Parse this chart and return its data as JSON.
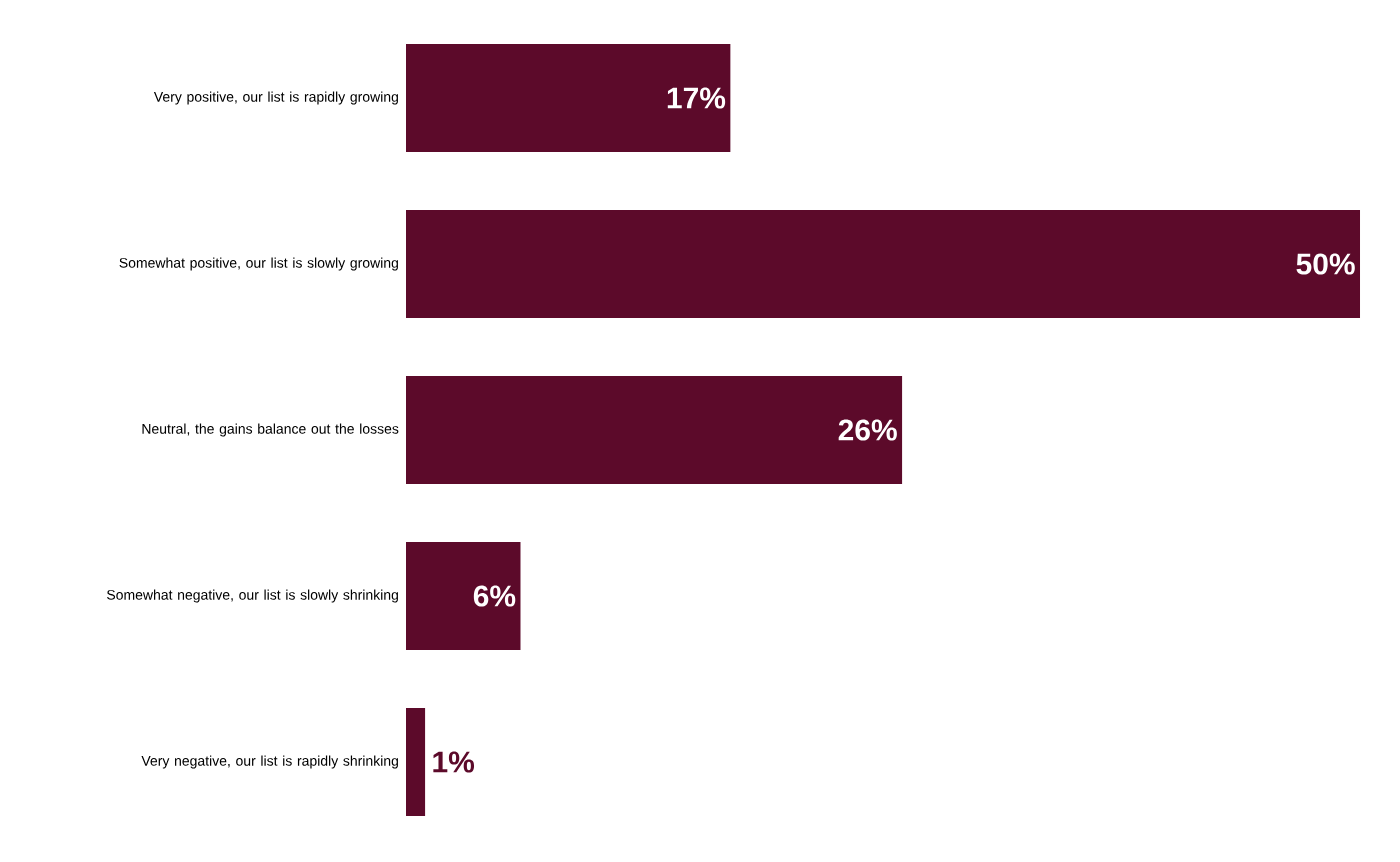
{
  "chart_data": {
    "type": "bar",
    "orientation": "horizontal",
    "categories": [
      "Very positive, our list is rapidly growing",
      "Somewhat positive, our list is slowly growing",
      "Neutral, the gains balance out the losses",
      "Somewhat negative, our list is slowly shrinking",
      "Very negative, our list is rapidly shrinking"
    ],
    "values": [
      17,
      50,
      26,
      6,
      1
    ],
    "value_labels": [
      "17%",
      "50%",
      "26%",
      "6%",
      "1%"
    ],
    "color": "#5c0a2a",
    "xlim": [
      0,
      50
    ]
  }
}
